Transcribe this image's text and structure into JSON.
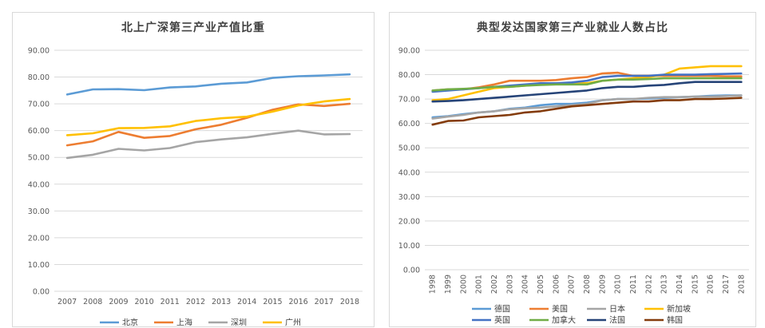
{
  "chart_data": [
    {
      "type": "line",
      "title": "北上广深第三产业产值比重",
      "xlabel": "",
      "ylabel": "",
      "ylim": [
        0,
        90
      ],
      "ytick_labels": [
        "0.00",
        "10.00",
        "20.00",
        "30.00",
        "40.00",
        "50.00",
        "60.00",
        "70.00",
        "80.00",
        "90.00"
      ],
      "x": [
        "2007",
        "2008",
        "2009",
        "2010",
        "2011",
        "2012",
        "2013",
        "2014",
        "2015",
        "2016",
        "2017",
        "2018"
      ],
      "grid": true,
      "legend": "bottom",
      "series": [
        {
          "name": "北京",
          "color": "#5b9bd5",
          "values": [
            73.5,
            75.4,
            75.5,
            75.1,
            76.1,
            76.5,
            77.5,
            78.0,
            79.7,
            80.3,
            80.6,
            81.0
          ]
        },
        {
          "name": "上海",
          "color": "#ed7d31",
          "values": [
            54.5,
            56.0,
            59.5,
            57.3,
            58.0,
            60.5,
            62.2,
            64.8,
            67.8,
            69.8,
            69.2,
            70.0
          ]
        },
        {
          "name": "深圳",
          "color": "#a5a5a5",
          "values": [
            49.8,
            51.0,
            53.2,
            52.6,
            53.5,
            55.7,
            56.7,
            57.5,
            58.8,
            60.0,
            58.6,
            58.7
          ]
        },
        {
          "name": "广州",
          "color": "#ffc000",
          "values": [
            58.3,
            59.0,
            60.9,
            61.0,
            61.6,
            63.6,
            64.6,
            65.2,
            67.1,
            69.4,
            70.9,
            71.8
          ]
        }
      ]
    },
    {
      "type": "line",
      "title": "典型发达国家第三产业就业人数占比",
      "xlabel": "",
      "ylabel": "",
      "ylim": [
        0,
        90
      ],
      "ytick_labels": [
        "0.00",
        "10.00",
        "20.00",
        "30.00",
        "40.00",
        "50.00",
        "60.00",
        "70.00",
        "80.00",
        "90.00"
      ],
      "x": [
        "1998",
        "1999",
        "2000",
        "2001",
        "2002",
        "2003",
        "2004",
        "2005",
        "2006",
        "2007",
        "2008",
        "2009",
        "2010",
        "2011",
        "2012",
        "2013",
        "2014",
        "2015",
        "2016",
        "2017",
        "2018"
      ],
      "grid": true,
      "legend": "bottom",
      "series": [
        {
          "name": "德国",
          "color": "#5b9bd5",
          "values": [
            62.5,
            63.0,
            63.8,
            64.5,
            65.0,
            66.0,
            66.5,
            67.5,
            68.0,
            68.0,
            68.5,
            69.5,
            70.0,
            70.0,
            70.2,
            70.5,
            70.8,
            71.0,
            71.3,
            71.5,
            71.5
          ]
        },
        {
          "name": "美国",
          "color": "#ed7d31",
          "values": [
            73.5,
            74.0,
            74.0,
            74.8,
            76.0,
            77.5,
            77.5,
            77.5,
            77.8,
            78.5,
            79.0,
            80.5,
            80.8,
            79.5,
            79.5,
            79.5,
            79.5,
            79.5,
            79.5,
            79.3,
            79.3
          ]
        },
        {
          "name": "日本",
          "color": "#a5a5a5",
          "values": [
            62.0,
            62.8,
            63.5,
            64.5,
            65.0,
            65.8,
            66.2,
            66.5,
            67.0,
            67.5,
            68.0,
            69.5,
            70.0,
            70.0,
            70.5,
            70.8,
            70.8,
            71.0,
            71.0,
            71.2,
            71.5
          ]
        },
        {
          "name": "新加坡",
          "color": "#ffc000",
          "values": [
            69.5,
            70.0,
            71.5,
            73.0,
            74.5,
            75.0,
            75.5,
            76.0,
            76.5,
            76.5,
            76.5,
            77.5,
            78.0,
            78.5,
            79.0,
            80.0,
            82.5,
            83.0,
            83.5,
            83.5,
            83.5
          ]
        },
        {
          "name": "英国",
          "color": "#4472c4",
          "values": [
            73.0,
            73.5,
            74.0,
            74.5,
            75.0,
            75.5,
            76.0,
            76.5,
            76.5,
            76.8,
            77.5,
            79.0,
            79.5,
            79.5,
            79.5,
            80.0,
            80.0,
            80.0,
            80.2,
            80.3,
            80.5
          ]
        },
        {
          "name": "加拿大",
          "color": "#70ad47",
          "values": [
            73.5,
            74.0,
            74.2,
            74.5,
            75.0,
            75.0,
            75.5,
            75.8,
            76.0,
            76.0,
            76.0,
            77.5,
            78.0,
            78.0,
            78.2,
            78.5,
            78.5,
            78.5,
            78.5,
            78.5,
            78.5
          ]
        },
        {
          "name": "法国",
          "color": "#264478",
          "values": [
            69.0,
            69.2,
            69.5,
            70.0,
            70.5,
            71.0,
            71.5,
            72.0,
            72.5,
            73.0,
            73.5,
            74.5,
            75.0,
            75.0,
            75.5,
            75.8,
            76.5,
            77.0,
            77.0,
            77.0,
            77.0
          ]
        },
        {
          "name": "韩国",
          "color": "#843c0c",
          "values": [
            59.5,
            61.0,
            61.2,
            62.5,
            63.0,
            63.5,
            64.5,
            65.0,
            66.0,
            67.0,
            67.5,
            68.0,
            68.5,
            69.0,
            69.0,
            69.5,
            69.5,
            70.0,
            70.0,
            70.2,
            70.5
          ]
        }
      ]
    }
  ]
}
